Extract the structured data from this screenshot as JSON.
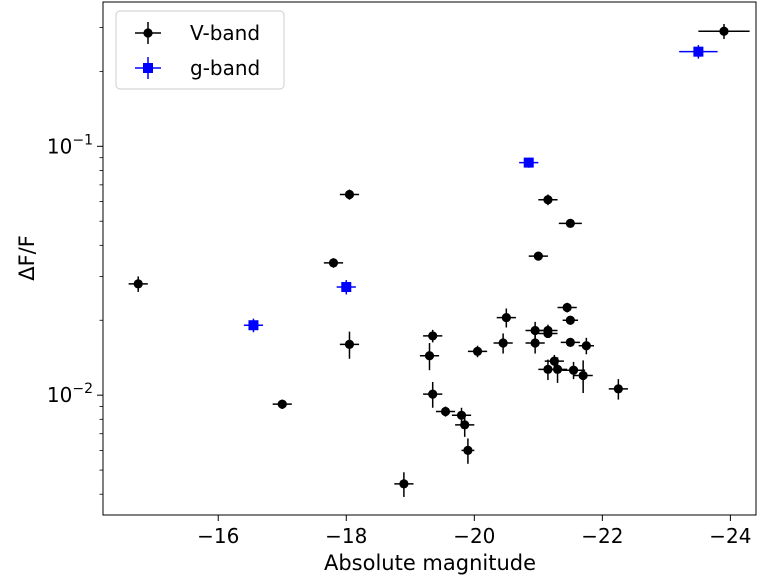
{
  "chart_data": {
    "type": "scatter",
    "title": "",
    "xlabel": "Absolute magnitude",
    "ylabel": "ΔF/F",
    "xlim": [
      -14.2,
      -24.4
    ],
    "ylim": [
      0.0033,
      0.38
    ],
    "yscale": "log",
    "grid": false,
    "legend_position": "top-left",
    "x_ticks": [
      {
        "value": -16,
        "label": "−16"
      },
      {
        "value": -18,
        "label": "−18"
      },
      {
        "value": -20,
        "label": "−20"
      },
      {
        "value": -22,
        "label": "−22"
      },
      {
        "value": -24,
        "label": "−24"
      }
    ],
    "y_ticks": [
      {
        "value": 0.01,
        "base": "10",
        "exp": "−2"
      },
      {
        "value": 0.1,
        "base": "10",
        "exp": "−1"
      }
    ],
    "series": [
      {
        "name": "V-band",
        "color": "#000000",
        "marker": "circle",
        "points": [
          {
            "x": -23.9,
            "y": 0.29,
            "xerr": 0.4,
            "yerr": 0.02
          },
          {
            "x": -14.75,
            "y": 0.028,
            "xerr": 0.15,
            "yerr": 0.002
          },
          {
            "x": -18.05,
            "y": 0.064,
            "xerr": 0.15,
            "yerr": 0.003
          },
          {
            "x": -17.8,
            "y": 0.034,
            "xerr": 0.15,
            "yerr": 0.0015
          },
          {
            "x": -18.05,
            "y": 0.016,
            "xerr": 0.15,
            "yerr": 0.002
          },
          {
            "x": -17.0,
            "y": 0.0092,
            "xerr": 0.15,
            "yerr": 0.0004
          },
          {
            "x": -18.9,
            "y": 0.0044,
            "xerr": 0.15,
            "yerr": 0.0005
          },
          {
            "x": -19.35,
            "y": 0.0173,
            "xerr": 0.15,
            "yerr": 0.001
          },
          {
            "x": -19.3,
            "y": 0.0144,
            "xerr": 0.15,
            "yerr": 0.0018
          },
          {
            "x": -19.35,
            "y": 0.0101,
            "xerr": 0.15,
            "yerr": 0.0012
          },
          {
            "x": -19.55,
            "y": 0.0086,
            "xerr": 0.15,
            "yerr": 0.0004
          },
          {
            "x": -19.8,
            "y": 0.0083,
            "xerr": 0.15,
            "yerr": 0.0006
          },
          {
            "x": -19.85,
            "y": 0.0076,
            "xerr": 0.15,
            "yerr": 0.0008
          },
          {
            "x": -19.9,
            "y": 0.006,
            "xerr": 0.1,
            "yerr": 0.0007
          },
          {
            "x": -20.05,
            "y": 0.015,
            "xerr": 0.15,
            "yerr": 0.0008
          },
          {
            "x": -20.45,
            "y": 0.0162,
            "xerr": 0.15,
            "yerr": 0.0015
          },
          {
            "x": -20.5,
            "y": 0.0205,
            "xerr": 0.15,
            "yerr": 0.0018
          },
          {
            "x": -20.95,
            "y": 0.0182,
            "xerr": 0.15,
            "yerr": 0.0015
          },
          {
            "x": -20.95,
            "y": 0.0162,
            "xerr": 0.15,
            "yerr": 0.0015
          },
          {
            "x": -21.15,
            "y": 0.0182,
            "xerr": 0.15,
            "yerr": 0.001
          },
          {
            "x": -21.15,
            "y": 0.0177,
            "xerr": 0.15,
            "yerr": 0.0007
          },
          {
            "x": -21.0,
            "y": 0.0362,
            "xerr": 0.15,
            "yerr": 0.0013
          },
          {
            "x": -21.15,
            "y": 0.061,
            "xerr": 0.15,
            "yerr": 0.003
          },
          {
            "x": -21.5,
            "y": 0.049,
            "xerr": 0.18,
            "yerr": 0.0015
          },
          {
            "x": -21.45,
            "y": 0.0225,
            "xerr": 0.15,
            "yerr": 0.001
          },
          {
            "x": -21.5,
            "y": 0.02,
            "xerr": 0.12,
            "yerr": 0.0008
          },
          {
            "x": -21.5,
            "y": 0.0163,
            "xerr": 0.15,
            "yerr": 0.0006
          },
          {
            "x": -21.75,
            "y": 0.0158,
            "xerr": 0.12,
            "yerr": 0.0012
          },
          {
            "x": -21.25,
            "y": 0.0137,
            "xerr": 0.15,
            "yerr": 0.0008
          },
          {
            "x": -21.15,
            "y": 0.0127,
            "xerr": 0.15,
            "yerr": 0.0012
          },
          {
            "x": -21.3,
            "y": 0.0127,
            "xerr": 0.15,
            "yerr": 0.0015
          },
          {
            "x": -21.55,
            "y": 0.0126,
            "xerr": 0.18,
            "yerr": 0.001
          },
          {
            "x": -21.7,
            "y": 0.012,
            "xerr": 0.15,
            "yerr": 0.0018
          },
          {
            "x": -22.25,
            "y": 0.0106,
            "xerr": 0.15,
            "yerr": 0.001
          }
        ]
      },
      {
        "name": "g-band",
        "color": "#0000ff",
        "marker": "square",
        "points": [
          {
            "x": -23.5,
            "y": 0.24,
            "xerr": 0.3,
            "yerr": 0.015
          },
          {
            "x": -20.85,
            "y": 0.086,
            "xerr": 0.15,
            "yerr": 0.004
          },
          {
            "x": -18.0,
            "y": 0.0272,
            "xerr": 0.15,
            "yerr": 0.0018
          },
          {
            "x": -16.55,
            "y": 0.0191,
            "xerr": 0.15,
            "yerr": 0.0012
          }
        ]
      }
    ]
  }
}
